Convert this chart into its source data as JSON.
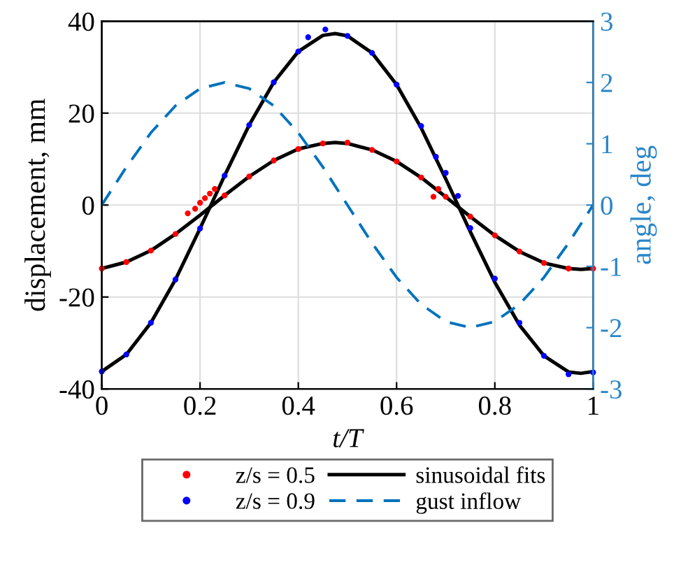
{
  "chart_data": {
    "type": "line",
    "xlabel": "t/T",
    "ylabel": "displacement, mm",
    "y2label": "angle, deg",
    "xlim": [
      0,
      1
    ],
    "xticks": [
      0,
      0.2,
      0.4,
      0.6,
      0.8,
      1
    ],
    "ylim": [
      -40,
      40
    ],
    "yticks": [
      -40,
      -20,
      0,
      20,
      40
    ],
    "y2lim": [
      -3,
      3
    ],
    "y2ticks": [
      -3,
      -2,
      -1,
      0,
      1,
      2,
      3
    ],
    "grid": true,
    "legend": "bottom",
    "series": [
      {
        "name": "z/s = 0.5",
        "type": "scatter",
        "marker": "circle",
        "color": "#ff0000",
        "x": [
          0,
          0.05,
          0.1,
          0.15,
          0.175,
          0.19,
          0.2,
          0.21,
          0.22,
          0.23,
          0.25,
          0.3,
          0.35,
          0.4,
          0.45,
          0.5,
          0.55,
          0.6,
          0.65,
          0.675,
          0.685,
          0.7,
          0.75,
          0.8,
          0.85,
          0.9,
          0.95,
          1
        ],
        "values": [
          -13.8,
          -12.4,
          -9.9,
          -6.3,
          -1.8,
          -0.8,
          0.5,
          1.5,
          2.5,
          3.5,
          2.1,
          6.2,
          9.7,
          12.2,
          13.4,
          13.6,
          12,
          9.5,
          6,
          1.8,
          3.5,
          1.8,
          -2.5,
          -6.6,
          -10.1,
          -12.6,
          -13.8,
          -13.8
        ]
      },
      {
        "name": "z/s = 0.9",
        "type": "scatter",
        "marker": "circle",
        "color": "#0000ff",
        "x": [
          0,
          0.05,
          0.1,
          0.15,
          0.2,
          0.25,
          0.3,
          0.35,
          0.4,
          0.42,
          0.455,
          0.5,
          0.55,
          0.6,
          0.65,
          0.68,
          0.7,
          0.725,
          0.75,
          0.8,
          0.85,
          0.9,
          0.95,
          1
        ],
        "values": [
          -36.2,
          -32.5,
          -25.6,
          -16.2,
          -5.1,
          6.4,
          17.4,
          26.7,
          33.4,
          36.5,
          38.2,
          36.8,
          33.1,
          26.2,
          17.2,
          10.5,
          7,
          2,
          -5,
          -16,
          -25.6,
          -32.8,
          -36.8,
          -36.4
        ]
      },
      {
        "name": "sinusoidal fits",
        "line_style": "solid",
        "color": "#000000",
        "x": [
          0,
          0.05,
          0.1,
          0.15,
          0.2,
          0.25,
          0.3,
          0.35,
          0.4,
          0.45,
          0.475,
          0.5,
          0.55,
          0.6,
          0.65,
          0.7,
          0.75,
          0.8,
          0.85,
          0.9,
          0.95,
          0.975,
          1
        ],
        "values": [
          -13.8,
          -12.4,
          -9.9,
          -6.3,
          -2.2,
          2.1,
          6.2,
          9.7,
          12.2,
          13.4,
          13.6,
          13.4,
          12,
          9.5,
          6,
          1.8,
          -2.5,
          -6.6,
          -10.1,
          -12.6,
          -13.8,
          -14,
          -13.8
        ]
      },
      {
        "line_style": "solid",
        "color": "#000000",
        "x": [
          0,
          0.05,
          0.1,
          0.15,
          0.2,
          0.25,
          0.3,
          0.35,
          0.4,
          0.45,
          0.475,
          0.5,
          0.55,
          0.6,
          0.65,
          0.7,
          0.75,
          0.8,
          0.85,
          0.9,
          0.95,
          0.975,
          1
        ],
        "values": [
          -36.2,
          -32.5,
          -25.6,
          -16.2,
          -5.1,
          6.4,
          17.4,
          26.7,
          33.4,
          36.9,
          37.3,
          36.8,
          33.1,
          26.2,
          16.8,
          5.7,
          -5.8,
          -16.8,
          -26.1,
          -32.8,
          -36.3,
          -36.6,
          -36.2
        ]
      },
      {
        "name": "gust inflow",
        "line_style": "dashed",
        "axis": "y2",
        "color": "#0072bd",
        "x": [
          0,
          0.05,
          0.1,
          0.15,
          0.2,
          0.25,
          0.3,
          0.35,
          0.4,
          0.45,
          0.5,
          0.55,
          0.6,
          0.65,
          0.7,
          0.75,
          0.8,
          0.85,
          0.9,
          0.95,
          1
        ],
        "values": [
          0,
          0.62,
          1.18,
          1.62,
          1.9,
          2,
          1.9,
          1.62,
          1.18,
          0.62,
          0,
          -0.62,
          -1.18,
          -1.62,
          -1.9,
          -2,
          -1.9,
          -1.62,
          -1.18,
          -0.62,
          0
        ]
      }
    ]
  }
}
